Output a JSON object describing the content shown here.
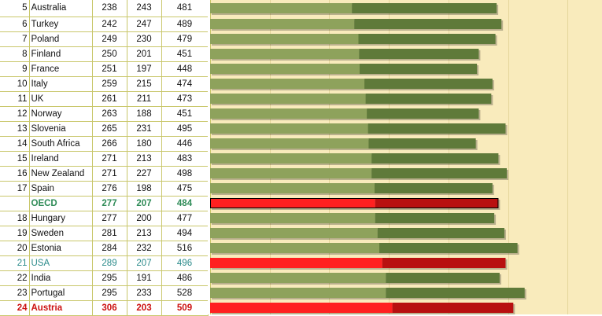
{
  "chart_data": {
    "type": "bar",
    "stacked": true,
    "rows": [
      {
        "rank": "5",
        "country": "Australia",
        "a": 238,
        "b": 243,
        "total": 481,
        "highlight": ""
      },
      {
        "rank": "6",
        "country": "Turkey",
        "a": 242,
        "b": 247,
        "total": 489,
        "highlight": ""
      },
      {
        "rank": "7",
        "country": "Poland",
        "a": 249,
        "b": 230,
        "total": 479,
        "highlight": ""
      },
      {
        "rank": "8",
        "country": "Finland",
        "a": 250,
        "b": 201,
        "total": 451,
        "highlight": ""
      },
      {
        "rank": "9",
        "country": "France",
        "a": 251,
        "b": 197,
        "total": 448,
        "highlight": ""
      },
      {
        "rank": "10",
        "country": "Italy",
        "a": 259,
        "b": 215,
        "total": 474,
        "highlight": ""
      },
      {
        "rank": "11",
        "country": "UK",
        "a": 261,
        "b": 211,
        "total": 473,
        "highlight": ""
      },
      {
        "rank": "12",
        "country": "Norway",
        "a": 263,
        "b": 188,
        "total": 451,
        "highlight": ""
      },
      {
        "rank": "13",
        "country": "Slovenia",
        "a": 265,
        "b": 231,
        "total": 495,
        "highlight": ""
      },
      {
        "rank": "14",
        "country": "South Africa",
        "a": 266,
        "b": 180,
        "total": 446,
        "highlight": ""
      },
      {
        "rank": "15",
        "country": "Ireland",
        "a": 271,
        "b": 213,
        "total": 483,
        "highlight": ""
      },
      {
        "rank": "16",
        "country": "New Zealand",
        "a": 271,
        "b": 227,
        "total": 498,
        "highlight": ""
      },
      {
        "rank": "17",
        "country": "Spain",
        "a": 276,
        "b": 198,
        "total": 475,
        "highlight": ""
      },
      {
        "rank": "",
        "country": "OECD",
        "a": 277,
        "b": 207,
        "total": 484,
        "highlight": "green"
      },
      {
        "rank": "18",
        "country": "Hungary",
        "a": 277,
        "b": 200,
        "total": 477,
        "highlight": ""
      },
      {
        "rank": "19",
        "country": "Sweden",
        "a": 281,
        "b": 213,
        "total": 494,
        "highlight": ""
      },
      {
        "rank": "20",
        "country": "Estonia",
        "a": 284,
        "b": 232,
        "total": 516,
        "highlight": ""
      },
      {
        "rank": "21",
        "country": "USA",
        "a": 289,
        "b": 207,
        "total": 496,
        "highlight": "blue"
      },
      {
        "rank": "22",
        "country": "India",
        "a": 295,
        "b": 191,
        "total": 486,
        "highlight": ""
      },
      {
        "rank": "23",
        "country": "Portugal",
        "a": 295,
        "b": 233,
        "total": 528,
        "highlight": ""
      },
      {
        "rank": "24",
        "country": "Austria",
        "a": 306,
        "b": 203,
        "total": 509,
        "highlight": "red"
      }
    ],
    "xlim": [
      0,
      600
    ],
    "colors": {
      "a": "#8ea25c",
      "b": "#5f7a3a",
      "a_red": "#ff2020",
      "b_red": "#b81010",
      "background": "#f9ebbc",
      "grid": "#e4d59a"
    }
  }
}
